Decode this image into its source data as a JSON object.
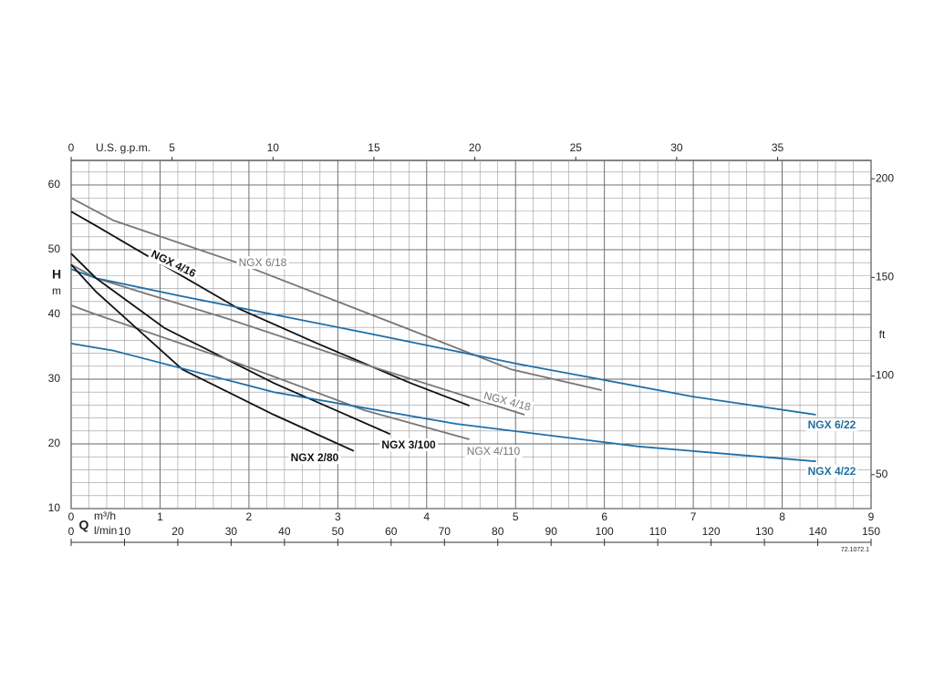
{
  "chart_data": {
    "type": "line",
    "x_symbol": "Q",
    "x_unit": "m³/h",
    "x2_unit": "l/min",
    "x3_unit": "U.S. g.p.m.",
    "y_symbol": "H",
    "y_unit": "m",
    "y2_unit": "ft",
    "code": "72.1072.1",
    "xlim": [
      0,
      9
    ],
    "xticks": [
      0,
      1,
      2,
      3,
      4,
      5,
      6,
      7,
      8,
      9
    ],
    "x2lim": [
      0,
      150
    ],
    "x2ticks": [
      0,
      10,
      20,
      30,
      40,
      50,
      60,
      70,
      80,
      90,
      100,
      110,
      120,
      130,
      140,
      150
    ],
    "x3lim": [
      0,
      39.63
    ],
    "x3ticks": [
      0,
      5,
      10,
      15,
      20,
      25,
      30,
      35
    ],
    "ylim": [
      10,
      63.8
    ],
    "yticks": [
      10,
      20,
      30,
      40,
      50,
      60
    ],
    "y2lim": [
      32.8,
      209.3
    ],
    "y2ticks": [
      50,
      100,
      150,
      200
    ],
    "grid": true,
    "series": [
      {
        "name": "NGX 6/18",
        "color": "#777777",
        "x": [
          0,
          0.48,
          1.87,
          3.82,
          4.95,
          5.97
        ],
        "values": [
          58.0,
          54.5,
          48.0,
          37.6,
          31.5,
          28.3
        ]
      },
      {
        "name": "NGX 4/16",
        "color": "#111111",
        "x": [
          0,
          0.28,
          0.84,
          1.87,
          2.79,
          3.82,
          4.48
        ],
        "values": [
          55.9,
          53.7,
          49.2,
          41.0,
          35.4,
          29.4,
          25.9
        ]
      },
      {
        "name": "NGX 4/18",
        "color": "#777777",
        "x": [
          0,
          0.28,
          1.77,
          3.3,
          5.1
        ],
        "values": [
          47.7,
          45.6,
          39.3,
          32.3,
          24.5
        ]
      },
      {
        "name": "NGX 6/22",
        "color": "#1f6fa8",
        "x": [
          0,
          0.28,
          1.25,
          3.3,
          5.05,
          7.0,
          8.38
        ],
        "values": [
          47.0,
          45.6,
          42.8,
          37.2,
          32.3,
          27.3,
          24.5
        ]
      },
      {
        "name": "NGX 3/100",
        "color": "#111111",
        "x": [
          0,
          0.28,
          1.05,
          2.28,
          3.59
        ],
        "values": [
          49.4,
          45.6,
          37.9,
          29.4,
          21.5
        ]
      },
      {
        "name": "NGX 4/110",
        "color": "#777777",
        "x": [
          0,
          0.28,
          1.77,
          3.3,
          4.48
        ],
        "values": [
          41.4,
          40.0,
          33.0,
          25.2,
          20.7
        ]
      },
      {
        "name": "NGX 2/80",
        "color": "#111111",
        "x": [
          0,
          0.28,
          1.25,
          2.28,
          3.18
        ],
        "values": [
          47.7,
          43.5,
          31.5,
          24.5,
          18.9
        ]
      },
      {
        "name": "NGX 4/22",
        "color": "#1f6fa8",
        "x": [
          0,
          0.48,
          2.28,
          4.33,
          6.38,
          8.38
        ],
        "values": [
          35.5,
          34.4,
          28.0,
          23.1,
          19.6,
          17.3
        ]
      }
    ]
  }
}
